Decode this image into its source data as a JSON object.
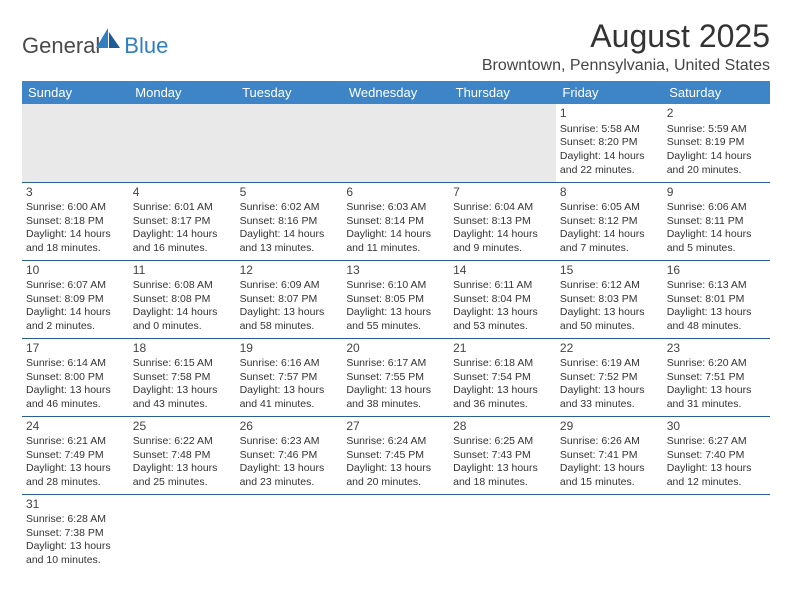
{
  "logo": {
    "text1": "General",
    "text2": "Blue"
  },
  "title": "August 2025",
  "location": "Browntown, Pennsylvania, United States",
  "colors": {
    "header_bg": "#3d85c6",
    "header_text": "#ffffff",
    "row_border": "#2b5f93",
    "empty_bg": "#e9e9e9",
    "logo_blue": "#2f7fc1",
    "text": "#333333"
  },
  "day_headers": [
    "Sunday",
    "Monday",
    "Tuesday",
    "Wednesday",
    "Thursday",
    "Friday",
    "Saturday"
  ],
  "weeks": [
    [
      null,
      null,
      null,
      null,
      null,
      {
        "n": "1",
        "sr": "Sunrise: 5:58 AM",
        "ss": "Sunset: 8:20 PM",
        "dl": "Daylight: 14 hours and 22 minutes."
      },
      {
        "n": "2",
        "sr": "Sunrise: 5:59 AM",
        "ss": "Sunset: 8:19 PM",
        "dl": "Daylight: 14 hours and 20 minutes."
      }
    ],
    [
      {
        "n": "3",
        "sr": "Sunrise: 6:00 AM",
        "ss": "Sunset: 8:18 PM",
        "dl": "Daylight: 14 hours and 18 minutes."
      },
      {
        "n": "4",
        "sr": "Sunrise: 6:01 AM",
        "ss": "Sunset: 8:17 PM",
        "dl": "Daylight: 14 hours and 16 minutes."
      },
      {
        "n": "5",
        "sr": "Sunrise: 6:02 AM",
        "ss": "Sunset: 8:16 PM",
        "dl": "Daylight: 14 hours and 13 minutes."
      },
      {
        "n": "6",
        "sr": "Sunrise: 6:03 AM",
        "ss": "Sunset: 8:14 PM",
        "dl": "Daylight: 14 hours and 11 minutes."
      },
      {
        "n": "7",
        "sr": "Sunrise: 6:04 AM",
        "ss": "Sunset: 8:13 PM",
        "dl": "Daylight: 14 hours and 9 minutes."
      },
      {
        "n": "8",
        "sr": "Sunrise: 6:05 AM",
        "ss": "Sunset: 8:12 PM",
        "dl": "Daylight: 14 hours and 7 minutes."
      },
      {
        "n": "9",
        "sr": "Sunrise: 6:06 AM",
        "ss": "Sunset: 8:11 PM",
        "dl": "Daylight: 14 hours and 5 minutes."
      }
    ],
    [
      {
        "n": "10",
        "sr": "Sunrise: 6:07 AM",
        "ss": "Sunset: 8:09 PM",
        "dl": "Daylight: 14 hours and 2 minutes."
      },
      {
        "n": "11",
        "sr": "Sunrise: 6:08 AM",
        "ss": "Sunset: 8:08 PM",
        "dl": "Daylight: 14 hours and 0 minutes."
      },
      {
        "n": "12",
        "sr": "Sunrise: 6:09 AM",
        "ss": "Sunset: 8:07 PM",
        "dl": "Daylight: 13 hours and 58 minutes."
      },
      {
        "n": "13",
        "sr": "Sunrise: 6:10 AM",
        "ss": "Sunset: 8:05 PM",
        "dl": "Daylight: 13 hours and 55 minutes."
      },
      {
        "n": "14",
        "sr": "Sunrise: 6:11 AM",
        "ss": "Sunset: 8:04 PM",
        "dl": "Daylight: 13 hours and 53 minutes."
      },
      {
        "n": "15",
        "sr": "Sunrise: 6:12 AM",
        "ss": "Sunset: 8:03 PM",
        "dl": "Daylight: 13 hours and 50 minutes."
      },
      {
        "n": "16",
        "sr": "Sunrise: 6:13 AM",
        "ss": "Sunset: 8:01 PM",
        "dl": "Daylight: 13 hours and 48 minutes."
      }
    ],
    [
      {
        "n": "17",
        "sr": "Sunrise: 6:14 AM",
        "ss": "Sunset: 8:00 PM",
        "dl": "Daylight: 13 hours and 46 minutes."
      },
      {
        "n": "18",
        "sr": "Sunrise: 6:15 AM",
        "ss": "Sunset: 7:58 PM",
        "dl": "Daylight: 13 hours and 43 minutes."
      },
      {
        "n": "19",
        "sr": "Sunrise: 6:16 AM",
        "ss": "Sunset: 7:57 PM",
        "dl": "Daylight: 13 hours and 41 minutes."
      },
      {
        "n": "20",
        "sr": "Sunrise: 6:17 AM",
        "ss": "Sunset: 7:55 PM",
        "dl": "Daylight: 13 hours and 38 minutes."
      },
      {
        "n": "21",
        "sr": "Sunrise: 6:18 AM",
        "ss": "Sunset: 7:54 PM",
        "dl": "Daylight: 13 hours and 36 minutes."
      },
      {
        "n": "22",
        "sr": "Sunrise: 6:19 AM",
        "ss": "Sunset: 7:52 PM",
        "dl": "Daylight: 13 hours and 33 minutes."
      },
      {
        "n": "23",
        "sr": "Sunrise: 6:20 AM",
        "ss": "Sunset: 7:51 PM",
        "dl": "Daylight: 13 hours and 31 minutes."
      }
    ],
    [
      {
        "n": "24",
        "sr": "Sunrise: 6:21 AM",
        "ss": "Sunset: 7:49 PM",
        "dl": "Daylight: 13 hours and 28 minutes."
      },
      {
        "n": "25",
        "sr": "Sunrise: 6:22 AM",
        "ss": "Sunset: 7:48 PM",
        "dl": "Daylight: 13 hours and 25 minutes."
      },
      {
        "n": "26",
        "sr": "Sunrise: 6:23 AM",
        "ss": "Sunset: 7:46 PM",
        "dl": "Daylight: 13 hours and 23 minutes."
      },
      {
        "n": "27",
        "sr": "Sunrise: 6:24 AM",
        "ss": "Sunset: 7:45 PM",
        "dl": "Daylight: 13 hours and 20 minutes."
      },
      {
        "n": "28",
        "sr": "Sunrise: 6:25 AM",
        "ss": "Sunset: 7:43 PM",
        "dl": "Daylight: 13 hours and 18 minutes."
      },
      {
        "n": "29",
        "sr": "Sunrise: 6:26 AM",
        "ss": "Sunset: 7:41 PM",
        "dl": "Daylight: 13 hours and 15 minutes."
      },
      {
        "n": "30",
        "sr": "Sunrise: 6:27 AM",
        "ss": "Sunset: 7:40 PM",
        "dl": "Daylight: 13 hours and 12 minutes."
      }
    ],
    [
      {
        "n": "31",
        "sr": "Sunrise: 6:28 AM",
        "ss": "Sunset: 7:38 PM",
        "dl": "Daylight: 13 hours and 10 minutes."
      },
      null,
      null,
      null,
      null,
      null,
      null
    ]
  ]
}
